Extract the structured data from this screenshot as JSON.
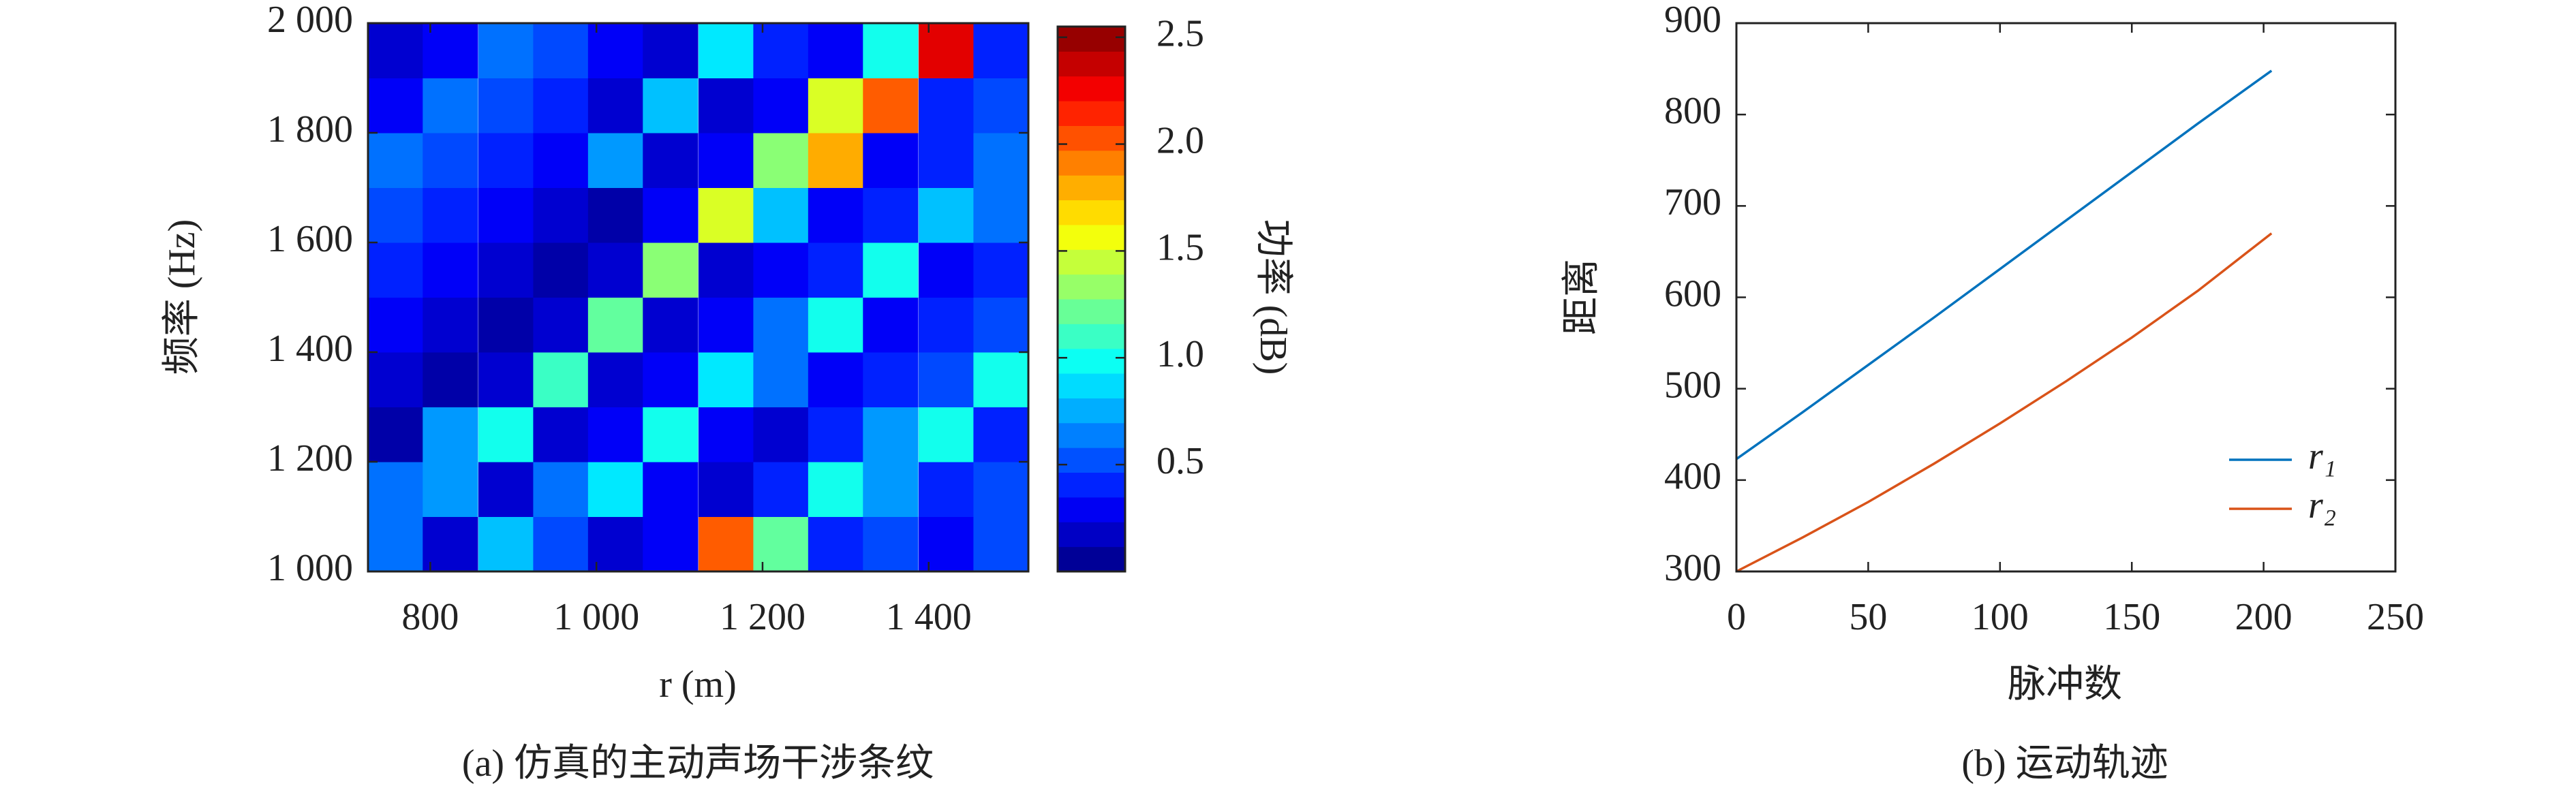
{
  "chart_data": [
    {
      "type": "heatmap",
      "caption": "(a) 仿真的主动声场干涉条纹",
      "xlabel": "r (m)",
      "ylabel": "频率 (Hz)",
      "colorbar_label": "功率 (dB)",
      "colormap": "jet",
      "xlim": [
        725,
        1520
      ],
      "ylim": [
        1000,
        2000
      ],
      "clim": [
        0,
        2.55
      ],
      "xticks": [
        800,
        {
          "value": 1000,
          "label": "1 000"
        },
        {
          "value": 1200,
          "label": "1 200"
        },
        {
          "value": 1400,
          "label": "1 400"
        }
      ],
      "yticks": [
        {
          "value": 1000,
          "label": "1 000"
        },
        {
          "value": 1200,
          "label": "1 200"
        },
        {
          "value": 1400,
          "label": "1 400"
        },
        {
          "value": 1600,
          "label": "1 600"
        },
        {
          "value": 1800,
          "label": "1 800"
        },
        {
          "value": 2000,
          "label": "2 000"
        }
      ],
      "cticks": [
        0.5,
        {
          "value": 1,
          "label": "1.0"
        },
        1.5,
        {
          "value": 2,
          "label": "2.0"
        },
        2.5
      ],
      "x": [
        758,
        824,
        891,
        957,
        1023,
        1089,
        1156,
        1222,
        1288,
        1354,
        1421,
        1487
      ],
      "y": [
        1050,
        1150,
        1250,
        1350,
        1450,
        1550,
        1650,
        1750,
        1850,
        1950
      ],
      "z": [
        [
          0.6,
          0.2,
          0.8,
          0.5,
          0.2,
          0.3,
          2.0,
          1.2,
          0.4,
          0.5,
          0.3,
          0.5
        ],
        [
          0.6,
          0.7,
          0.2,
          0.6,
          0.9,
          0.3,
          0.2,
          0.4,
          1.0,
          0.7,
          0.4,
          0.5
        ],
        [
          0.1,
          0.7,
          1.0,
          0.2,
          0.3,
          1.0,
          0.3,
          0.2,
          0.4,
          0.7,
          1.0,
          0.4
        ],
        [
          0.2,
          0.1,
          0.2,
          1.1,
          0.2,
          0.3,
          0.9,
          0.6,
          0.3,
          0.4,
          0.5,
          1.0
        ],
        [
          0.3,
          0.2,
          0.1,
          0.2,
          1.2,
          0.2,
          0.3,
          0.6,
          1.0,
          0.3,
          0.4,
          0.5
        ],
        [
          0.4,
          0.3,
          0.2,
          0.1,
          0.2,
          1.3,
          0.2,
          0.3,
          0.4,
          1.0,
          0.3,
          0.4
        ],
        [
          0.5,
          0.4,
          0.3,
          0.2,
          0.1,
          0.3,
          1.5,
          0.8,
          0.3,
          0.4,
          0.8,
          0.6
        ],
        [
          0.6,
          0.5,
          0.4,
          0.3,
          0.7,
          0.2,
          0.3,
          1.3,
          1.8,
          0.3,
          0.4,
          0.6
        ],
        [
          0.3,
          0.6,
          0.5,
          0.4,
          0.2,
          0.8,
          0.2,
          0.3,
          1.5,
          2.0,
          0.4,
          0.5
        ],
        [
          0.2,
          0.3,
          0.6,
          0.5,
          0.3,
          0.2,
          0.9,
          0.4,
          0.3,
          1.0,
          2.3,
          0.4
        ]
      ]
    },
    {
      "type": "line",
      "caption": "(b) 运动轨迹",
      "xlabel": "脉冲数",
      "ylabel": "距离",
      "xlim": [
        0,
        250
      ],
      "ylim": [
        300,
        900
      ],
      "xticks": [
        0,
        50,
        100,
        150,
        200,
        250
      ],
      "yticks": [
        300,
        400,
        500,
        600,
        700,
        800,
        900
      ],
      "legend": "lower right",
      "x": [
        0,
        25,
        50,
        75,
        100,
        125,
        150,
        175,
        203
      ],
      "series": [
        {
          "name": "r₁",
          "color": "#0072bd",
          "values": [
            423,
            474,
            526,
            578,
            631,
            684,
            737,
            790,
            848
          ]
        },
        {
          "name": "r₂",
          "color": "#d95319",
          "values": [
            300,
            337,
            376,
            418,
            462,
            508,
            556,
            607,
            670
          ]
        }
      ]
    }
  ]
}
